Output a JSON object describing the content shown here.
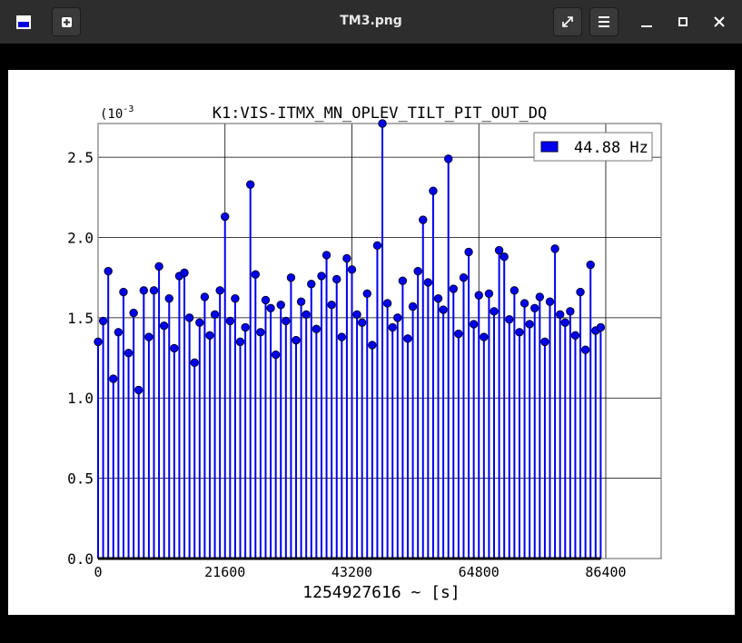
{
  "window_title": "TM3.png",
  "chart_data": {
    "type": "stem",
    "title": "K1:VIS-ITMX_MN_OPLEV_TILT_PIT_OUT_DQ",
    "x_label": "1254927616 ~ [s]",
    "y_exponent": {
      "base": "(10",
      "power": "-3"
    },
    "xlim": [
      0,
      95830
    ],
    "ylim": [
      0,
      2.71
    ],
    "xticks": [
      0,
      21600,
      43200,
      64800,
      86400
    ],
    "yticks": [
      {
        "value": 0,
        "label": "0.0"
      },
      0.5,
      {
        "value": 1,
        "label": "1.0"
      },
      1.5,
      {
        "value": 2,
        "label": "2.0"
      },
      2.5
    ],
    "grid": true,
    "legend": "upper right",
    "series": [
      {
        "name": "44.88 Hz",
        "color": "#0000ee",
        "x": [
          0,
          864,
          1728,
          2592,
          3456,
          4320,
          5184,
          6048,
          6912,
          7776,
          8640,
          9504,
          10368,
          11232,
          12096,
          12960,
          13824,
          14688,
          15552,
          16416,
          17280,
          18144,
          19008,
          19872,
          20736,
          21600,
          22464,
          23328,
          24192,
          25056,
          25920,
          26784,
          27648,
          28512,
          29376,
          30240,
          31104,
          31968,
          32832,
          33696,
          34560,
          35424,
          36288,
          37152,
          38016,
          38880,
          39744,
          40608,
          41472,
          42336,
          43200,
          44064,
          44928,
          45792,
          46656,
          47520,
          48384,
          49248,
          50112,
          50976,
          51840,
          52704,
          53568,
          54432,
          55296,
          56160,
          57024,
          57888,
          58752,
          59616,
          60480,
          61344,
          62208,
          63072,
          63936,
          64800,
          65664,
          66528,
          67392,
          68256,
          69120,
          69984,
          70848,
          71712,
          72576,
          73440,
          74304,
          75168,
          76032,
          76896,
          77760,
          78624,
          79488,
          80352,
          81216,
          82080,
          82944,
          83808,
          84672,
          85536
        ],
        "values": [
          1.35,
          1.48,
          1.79,
          1.12,
          1.41,
          1.66,
          1.28,
          1.53,
          1.05,
          1.67,
          1.38,
          1.67,
          1.82,
          1.45,
          1.62,
          1.31,
          1.76,
          1.78,
          1.5,
          1.22,
          1.47,
          1.63,
          1.39,
          1.52,
          1.67,
          2.13,
          1.48,
          1.62,
          1.35,
          1.44,
          2.33,
          1.77,
          1.41,
          1.61,
          1.56,
          1.27,
          1.58,
          1.48,
          1.75,
          1.36,
          1.6,
          1.52,
          1.71,
          1.43,
          1.76,
          1.89,
          1.58,
          1.74,
          1.38,
          1.87,
          1.8,
          1.52,
          1.47,
          1.65,
          1.33,
          1.95,
          2.71,
          1.59,
          1.44,
          1.5,
          1.73,
          1.37,
          1.57,
          1.79,
          2.11,
          1.72,
          2.29,
          1.62,
          1.55,
          2.49,
          1.68,
          1.4,
          1.75,
          1.91,
          1.46,
          1.64,
          1.38,
          1.65,
          1.54,
          1.92,
          1.88,
          1.49,
          1.67,
          1.41,
          1.59,
          1.46,
          1.56,
          1.63,
          1.35,
          1.6,
          1.93,
          1.52,
          1.47,
          1.54,
          1.39,
          1.66,
          1.3,
          1.83,
          1.42,
          1.44
        ]
      }
    ]
  }
}
